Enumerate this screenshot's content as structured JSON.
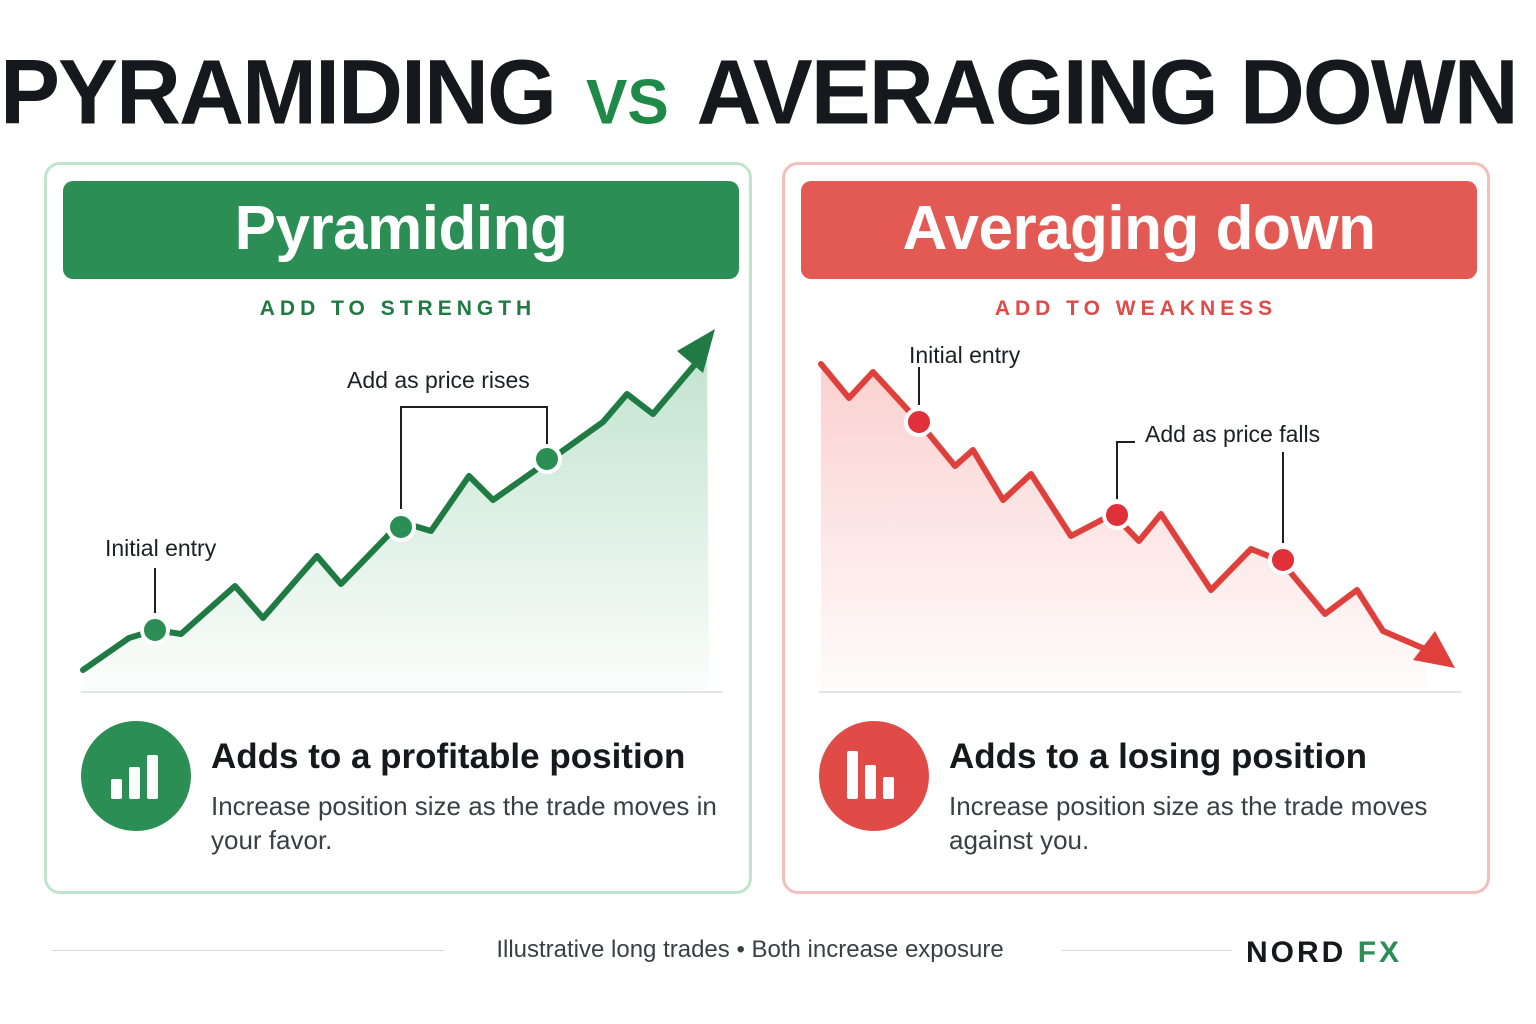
{
  "title": {
    "part1": "PYRAMIDING",
    "vs": "VS",
    "part2": "AVERAGING DOWN"
  },
  "colors": {
    "green": "#2b8f55",
    "red": "#e35a55",
    "dark": "#15181c"
  },
  "left_panel": {
    "heading": "Pyramiding",
    "subtitle": "ADD TO STRENGTH",
    "chart": {
      "initial_label": "Initial entry",
      "add_label": "Add as price rises",
      "trend": "up"
    },
    "icon": "bar-chart-up-icon",
    "point_title": "Adds to a profitable position",
    "point_desc": "Increase position size as the trade moves in your favor."
  },
  "right_panel": {
    "heading": "Averaging down",
    "subtitle": "ADD TO WEAKNESS",
    "chart": {
      "initial_label": "Initial entry",
      "add_label": "Add as price falls",
      "trend": "down"
    },
    "icon": "bar-chart-down-icon",
    "point_title": "Adds to a losing position",
    "point_desc": "Increase position size as the trade moves against you."
  },
  "footer": {
    "note": "Illustrative long trades • Both increase exposure",
    "logo_main": "NORD",
    "logo_accent": "FX"
  }
}
